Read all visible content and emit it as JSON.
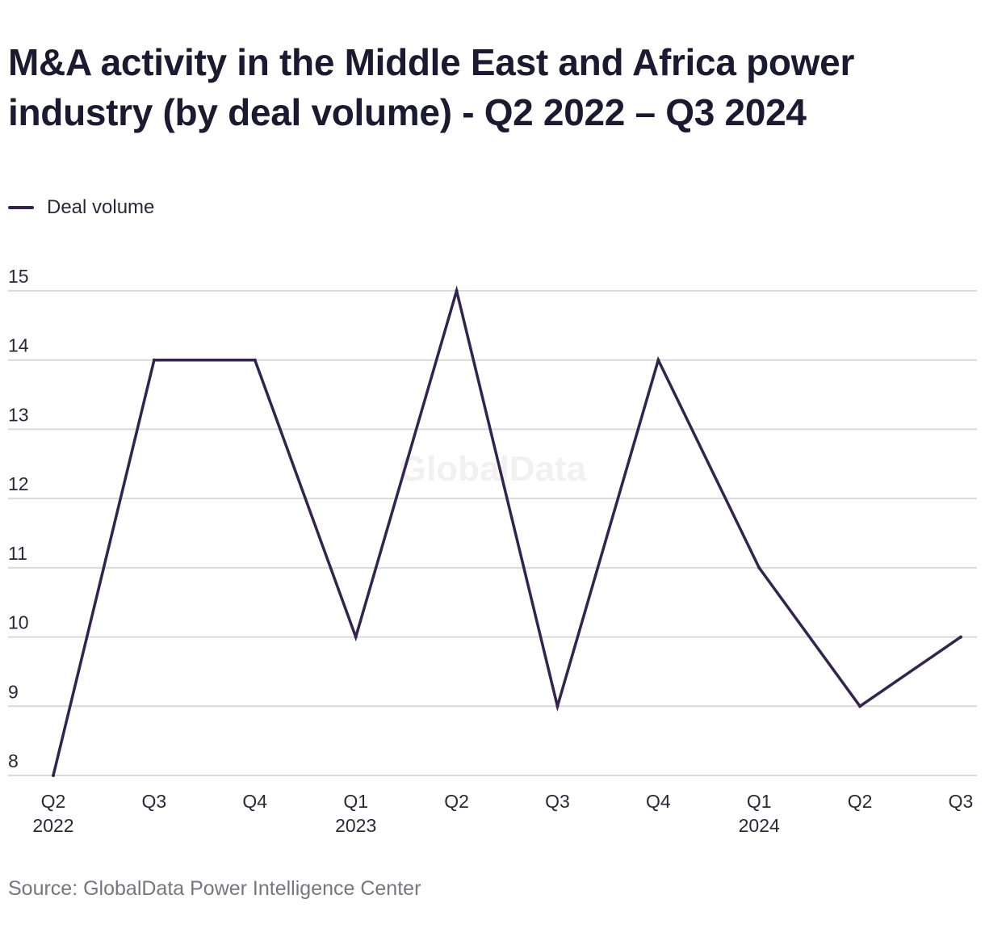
{
  "title": "M&A activity in the Middle East and Africa power industry (by deal volume) - Q2 2022 – Q3 2024",
  "legend": {
    "label": "Deal volume"
  },
  "watermark": "GlobalData",
  "source": "Source: GlobalData Power Intelligence Center",
  "colors": {
    "line": "#33244f",
    "grid": "#d9d9d9",
    "text": "#1c1a30",
    "muted": "#77757f"
  },
  "chart_data": {
    "type": "line",
    "title": "M&A activity in the Middle East and Africa power industry (by deal volume) - Q2 2022 – Q3 2024",
    "xlabel": "",
    "ylabel": "",
    "categories": [
      [
        "Q2",
        "2022"
      ],
      [
        "Q3",
        ""
      ],
      [
        "Q4",
        ""
      ],
      [
        "Q1",
        "2023"
      ],
      [
        "Q2",
        ""
      ],
      [
        "Q3",
        ""
      ],
      [
        "Q4",
        ""
      ],
      [
        "Q1",
        "2024"
      ],
      [
        "Q2",
        ""
      ],
      [
        "Q3",
        ""
      ]
    ],
    "series": [
      {
        "name": "Deal volume",
        "values": [
          8,
          14,
          14,
          10,
          15,
          9,
          14,
          11,
          9,
          10
        ]
      }
    ],
    "ylim": [
      8,
      15
    ],
    "yticks": [
      8,
      9,
      10,
      11,
      12,
      13,
      14,
      15
    ],
    "grid": true,
    "legend_position": "top-left"
  }
}
